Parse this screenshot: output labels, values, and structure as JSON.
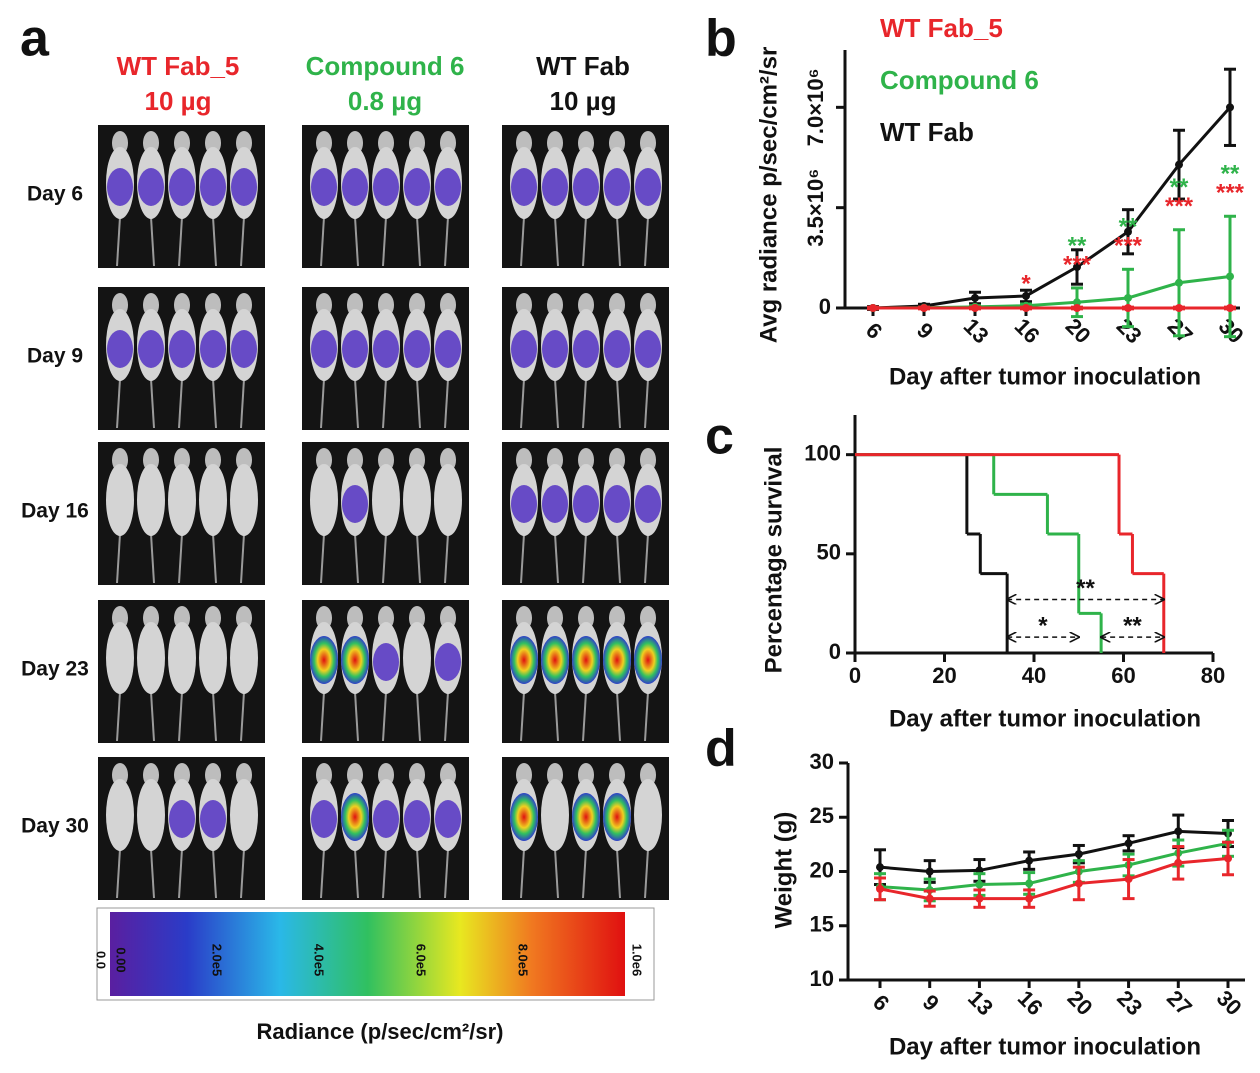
{
  "image_panel": {
    "panel_label": "a",
    "groups": [
      {
        "name": "WT Fab_5",
        "dose": "10 µg",
        "color": "#e8262b"
      },
      {
        "name": "Compound 6",
        "dose": "0.8 µg",
        "color": "#2fb34a"
      },
      {
        "name": "WT Fab",
        "dose": "10 µg",
        "color": "#111111"
      }
    ],
    "rows": [
      "Day 6",
      "Day 9",
      "Day 16",
      "Day 23",
      "Day 30"
    ],
    "colorbar": {
      "tick_labels": [
        "0.0",
        "0.00",
        "2.0e5",
        "4.0e5",
        "6.0e5",
        "8.0e5",
        "1.0e6"
      ],
      "label": "Radiance (p/sec/cm²/sr)"
    }
  },
  "chart_data": [
    {
      "type": "line",
      "panel_label": "b",
      "categories": [
        "6",
        "9",
        "13",
        "16",
        "20",
        "23",
        "27",
        "30"
      ],
      "xlabel": "Day after tumor inoculation",
      "ylabel": "Avg radiance p/sec/cm²/sr",
      "ylim": [
        0,
        9000000
      ],
      "yticks": [
        0,
        {
          "value": 3500000,
          "label": "3.5×10⁶"
        },
        {
          "value": 7000000,
          "label": "7.0×10⁶"
        }
      ],
      "legend": "top-left",
      "series": [
        {
          "name": "WT Fab_5",
          "color": "#e8262b",
          "values": [
            0,
            0,
            0,
            0,
            0,
            0,
            0,
            0
          ],
          "errors": [
            30000,
            30000,
            30000,
            30000,
            30000,
            30000,
            30000,
            30000
          ]
        },
        {
          "name": "Compound 6",
          "color": "#2fb34a",
          "values": [
            0,
            10000,
            40000,
            80000,
            200000,
            350000,
            880000,
            1100000
          ],
          "errors": [
            20000,
            20000,
            40000,
            60000,
            500000,
            1000000,
            1850000,
            2100000
          ]
        },
        {
          "name": "WT Fab",
          "color": "#111111",
          "values": [
            0,
            70000,
            350000,
            420000,
            1430000,
            2660000,
            5000000,
            7000000
          ],
          "errors": [
            50000,
            60000,
            200000,
            200000,
            600000,
            770000,
            1200000,
            1330000
          ]
        }
      ],
      "annotations": [
        {
          "x": "16",
          "marks": [
            {
              "text": "*",
              "color": "#e8262b"
            }
          ]
        },
        {
          "x": "20",
          "marks": [
            {
              "text": "**",
              "color": "#2fb34a"
            },
            {
              "text": "***",
              "color": "#e8262b"
            }
          ]
        },
        {
          "x": "23",
          "marks": [
            {
              "text": "**",
              "color": "#2fb34a"
            },
            {
              "text": "***",
              "color": "#e8262b"
            }
          ]
        },
        {
          "x": "27",
          "marks": [
            {
              "text": "**",
              "color": "#2fb34a"
            },
            {
              "text": "***",
              "color": "#e8262b"
            }
          ]
        },
        {
          "x": "30",
          "marks": [
            {
              "text": "**",
              "color": "#2fb34a"
            },
            {
              "text": "***",
              "color": "#e8262b"
            }
          ]
        }
      ]
    },
    {
      "type": "step",
      "panel_label": "c",
      "xlabel": "Day after tumor inoculation",
      "ylabel": "Percentage survival",
      "xlim": [
        0,
        80
      ],
      "xticks": [
        0,
        20,
        40,
        60,
        80
      ],
      "ylim": [
        0,
        120
      ],
      "yticks": [
        0,
        50,
        100
      ],
      "series": [
        {
          "color": "#111111",
          "x": [
            0,
            25,
            28,
            34
          ],
          "values": [
            100,
            60,
            40,
            0
          ]
        },
        {
          "color": "#2fb34a",
          "x": [
            0,
            31,
            43,
            50,
            55
          ],
          "values": [
            100,
            80,
            60,
            20,
            0
          ]
        },
        {
          "color": "#e8262b",
          "x": [
            0,
            59,
            62,
            69
          ],
          "values": [
            100,
            60,
            40,
            0
          ]
        }
      ],
      "annotations": [
        {
          "text": "**",
          "x1": 34,
          "x2": 69,
          "y": 27
        },
        {
          "text": "*",
          "x1": 34,
          "x2": 50,
          "y": 8
        },
        {
          "text": "**",
          "x1": 55,
          "x2": 69,
          "y": 8
        }
      ]
    },
    {
      "type": "line",
      "panel_label": "d",
      "categories": [
        "6",
        "9",
        "13",
        "16",
        "20",
        "23",
        "27",
        "30"
      ],
      "xlabel": "Day after tumor inoculation",
      "ylabel": "Weight (g)",
      "ylim": [
        10,
        30
      ],
      "yticks": [
        10,
        15,
        20,
        25,
        30
      ],
      "series": [
        {
          "color": "#e8262b",
          "values": [
            18.4,
            17.5,
            17.5,
            17.5,
            18.9,
            19.3,
            20.8,
            21.2
          ],
          "errors": [
            1.0,
            0.7,
            0.8,
            0.8,
            1.5,
            1.8,
            1.5,
            1.5
          ]
        },
        {
          "color": "#2fb34a",
          "values": [
            18.6,
            18.3,
            18.8,
            18.9,
            20.0,
            20.6,
            21.7,
            22.6
          ],
          "errors": [
            1.2,
            1.0,
            1.0,
            1.0,
            1.0,
            1.0,
            1.2,
            1.2
          ]
        },
        {
          "color": "#111111",
          "values": [
            20.4,
            20.0,
            20.1,
            21.0,
            21.6,
            22.6,
            23.7,
            23.5
          ],
          "errors": [
            1.6,
            1.0,
            1.0,
            0.8,
            0.8,
            0.7,
            1.5,
            1.2
          ]
        }
      ]
    }
  ]
}
